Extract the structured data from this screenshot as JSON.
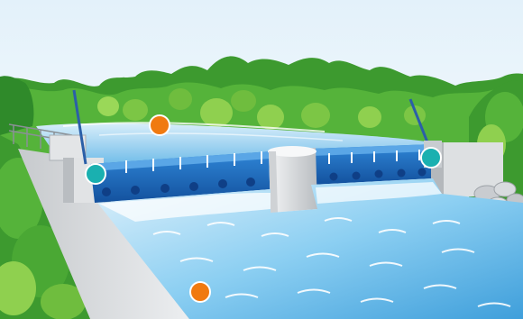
{
  "scene": {
    "subject": "weir-with-gates",
    "colors": {
      "sky_top": "#e8f4fb",
      "sky_bottom": "#ffffff",
      "tree_dark": "#2f8a2a",
      "tree_mid": "#4fae37",
      "tree_light": "#8fd04f",
      "water_light": "#bfe2f6",
      "water_mid": "#6cc0ee",
      "water_deep": "#2b8ad0",
      "gate_blue": "#1f6fc4",
      "gate_dark": "#0f3f86",
      "concrete": "#d7d9dc",
      "concrete_shadow": "#a8adb2",
      "marker_orange": "#f07a10",
      "marker_teal": "#1ab0b0"
    }
  },
  "markers": [
    {
      "id": "upstream-water",
      "color": "orange"
    },
    {
      "id": "left-gate-hinge",
      "color": "teal"
    },
    {
      "id": "right-gate-hinge",
      "color": "teal"
    },
    {
      "id": "downstream-water",
      "color": "orange"
    }
  ]
}
